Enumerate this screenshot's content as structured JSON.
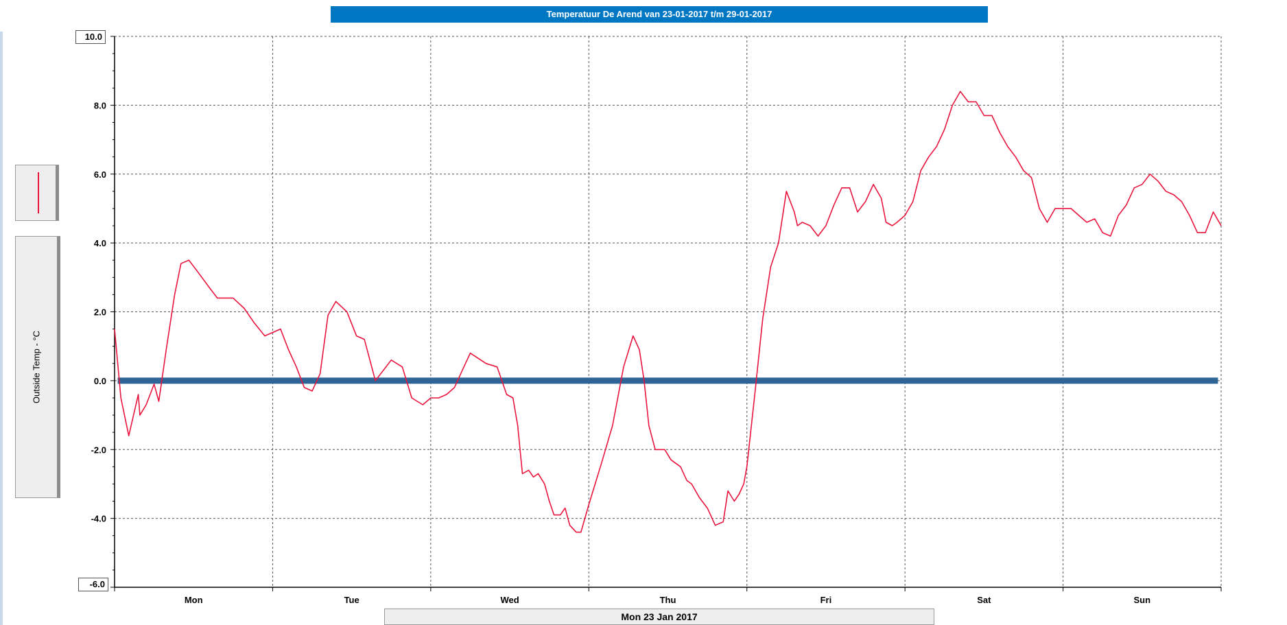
{
  "title": "Temperatuur De Arend van 23-01-2017 t/m 29-01-2017",
  "date_label": "Mon 23 Jan 2017",
  "colors": {
    "series": "#e8143c",
    "zero_line": "#2f6496",
    "title_bg": "#0077c2"
  },
  "chart_data": {
    "type": "line",
    "title": "Temperatuur De Arend van 23-01-2017 t/m 29-01-2017",
    "ylabel": "Outside Temp - °C",
    "xlabel": "",
    "ylim": [
      -6.0,
      10.0
    ],
    "xlim": [
      0,
      7
    ],
    "y_ticks": [
      "8.0",
      "6.0",
      "4.0",
      "2.0",
      "0.0",
      "-2.0",
      "-4.0"
    ],
    "y_max_label": "10.0",
    "y_min_label": "-6.0",
    "x_ticks": [
      "Mon",
      "Tue",
      "Wed",
      "Thu",
      "Fri",
      "Sat",
      "Sun"
    ],
    "grid": true,
    "reference_line": 0.0,
    "series": [
      {
        "x": [
          0.0,
          0.04,
          0.09,
          0.15,
          0.16,
          0.2,
          0.25,
          0.28,
          0.33,
          0.38,
          0.42,
          0.47,
          0.52,
          0.6,
          0.65,
          0.75,
          0.82,
          0.88,
          0.95,
          1.0,
          1.05,
          1.1,
          1.15,
          1.2,
          1.25,
          1.3,
          1.35,
          1.4,
          1.47,
          1.53,
          1.58,
          1.65,
          1.75,
          1.82,
          1.88,
          1.95,
          2.0,
          2.05,
          2.1,
          2.15,
          2.2,
          2.25,
          2.35,
          2.42,
          2.48,
          2.52,
          2.55,
          2.58,
          2.62,
          2.65,
          2.68,
          2.72,
          2.75,
          2.78,
          2.82,
          2.85,
          2.88,
          2.92,
          2.95,
          3.0,
          3.08,
          3.15,
          3.22,
          3.28,
          3.32,
          3.35,
          3.38,
          3.42,
          3.48,
          3.52,
          3.58,
          3.62,
          3.65,
          3.7,
          3.75,
          3.8,
          3.85,
          3.88,
          3.92,
          3.95,
          3.98,
          4.0,
          4.05,
          4.1,
          4.15,
          4.2,
          4.25,
          4.3,
          4.32,
          4.35,
          4.4,
          4.45,
          4.5,
          4.55,
          4.6,
          4.65,
          4.7,
          4.75,
          4.8,
          4.85,
          4.88,
          4.92,
          4.95,
          5.0,
          5.05,
          5.1,
          5.15,
          5.2,
          5.25,
          5.3,
          5.35,
          5.4,
          5.45,
          5.5,
          5.55,
          5.6,
          5.65,
          5.7,
          5.75,
          5.8,
          5.85,
          5.9,
          5.95,
          6.0,
          6.05,
          6.1,
          6.15,
          6.2,
          6.25,
          6.3,
          6.35,
          6.4,
          6.45,
          6.5,
          6.55,
          6.6,
          6.65,
          6.7,
          6.75,
          6.8,
          6.85,
          6.9,
          6.95,
          7.0
        ],
        "y": [
          1.5,
          -0.5,
          -1.6,
          -0.4,
          -1.0,
          -0.7,
          -0.1,
          -0.6,
          1.0,
          2.5,
          3.4,
          3.5,
          3.2,
          2.7,
          2.4,
          2.4,
          2.1,
          1.7,
          1.3,
          1.4,
          1.5,
          0.9,
          0.4,
          -0.2,
          -0.3,
          0.2,
          1.9,
          2.3,
          2.0,
          1.3,
          1.2,
          0.0,
          0.6,
          0.4,
          -0.5,
          -0.7,
          -0.5,
          -0.5,
          -0.4,
          -0.2,
          0.3,
          0.8,
          0.5,
          0.4,
          -0.4,
          -0.5,
          -1.3,
          -2.7,
          -2.6,
          -2.8,
          -2.7,
          -3.0,
          -3.5,
          -3.9,
          -3.9,
          -3.7,
          -4.2,
          -4.4,
          -4.4,
          -3.6,
          -2.4,
          -1.3,
          0.4,
          1.3,
          0.9,
          0.0,
          -1.3,
          -2.0,
          -2.0,
          -2.3,
          -2.5,
          -2.9,
          -3.0,
          -3.4,
          -3.7,
          -4.2,
          -4.1,
          -3.2,
          -3.5,
          -3.3,
          -3.0,
          -2.5,
          -0.4,
          1.8,
          3.3,
          4.0,
          5.5,
          4.9,
          4.5,
          4.6,
          4.5,
          4.2,
          4.5,
          5.1,
          5.6,
          5.6,
          4.9,
          5.2,
          5.7,
          5.3,
          4.6,
          4.5,
          4.6,
          4.8,
          5.2,
          6.1,
          6.5,
          6.8,
          7.3,
          8.0,
          8.4,
          8.1,
          8.1,
          7.7,
          7.7,
          7.2,
          6.8,
          6.5,
          6.1,
          5.9,
          5.0,
          4.6,
          5.0,
          5.0,
          5.0,
          4.8,
          4.6,
          4.7,
          4.3,
          4.2,
          4.8,
          5.1,
          5.6,
          5.7,
          6.0,
          5.8,
          5.5,
          5.4,
          5.2,
          4.8,
          4.3,
          4.3,
          4.9,
          4.5
        ]
      }
    ]
  }
}
